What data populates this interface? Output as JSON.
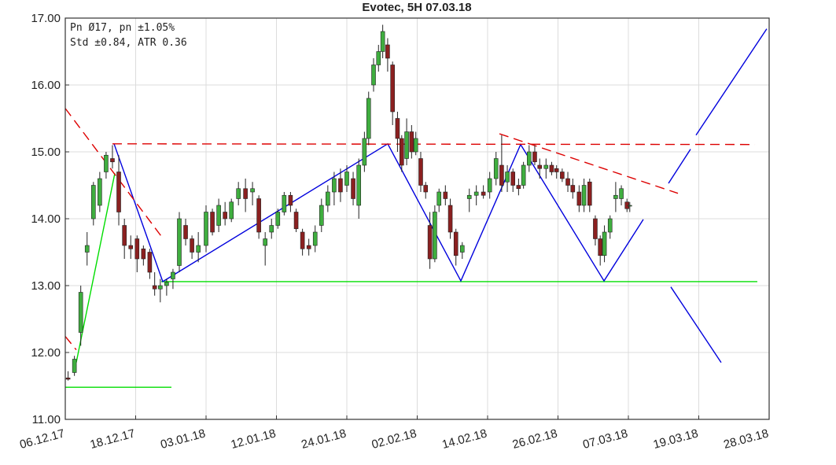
{
  "chart_data": {
    "type": "candlestick",
    "title": "Evotec, 5H 07.03.18",
    "annotations": [
      "Pn  Ø17, pn ±1.05%",
      "Std ±0.84, ATR 0.36"
    ],
    "xlim": [
      0,
      10
    ],
    "ylim": [
      11,
      17
    ],
    "grid": true,
    "xticks": [
      {
        "value": 0,
        "label": "06.12.17"
      },
      {
        "value": 1,
        "label": "18.12.17"
      },
      {
        "value": 2,
        "label": "03.01.18"
      },
      {
        "value": 3,
        "label": "12.01.18"
      },
      {
        "value": 4,
        "label": "24.01.18"
      },
      {
        "value": 5,
        "label": "02.02.18"
      },
      {
        "value": 6,
        "label": "14.02.18"
      },
      {
        "value": 7,
        "label": "26.02.18"
      },
      {
        "value": 8,
        "label": "07.03.18"
      },
      {
        "value": 9,
        "label": "19.03.18"
      },
      {
        "value": 10,
        "label": "28.03.18"
      }
    ],
    "yticks": [
      {
        "value": 11,
        "label": "11.00"
      },
      {
        "value": 12,
        "label": "12.00"
      },
      {
        "value": 13,
        "label": "13.00"
      },
      {
        "value": 14,
        "label": "14.00"
      },
      {
        "value": 15,
        "label": "15.00"
      },
      {
        "value": 16,
        "label": "16.00"
      },
      {
        "value": 17,
        "label": "17.00"
      }
    ],
    "up_color": "#3fae3f",
    "down_color": "#8b2020",
    "candles": [
      [
        0.04,
        11.62,
        11.72,
        11.58,
        11.6
      ],
      [
        0.13,
        11.7,
        11.95,
        11.65,
        11.9
      ],
      [
        0.22,
        12.3,
        13.0,
        12.1,
        12.9
      ],
      [
        0.31,
        13.5,
        13.8,
        13.3,
        13.6
      ],
      [
        0.4,
        14.0,
        14.55,
        13.9,
        14.5
      ],
      [
        0.49,
        14.2,
        14.7,
        14.1,
        14.6
      ],
      [
        0.58,
        14.7,
        15.0,
        14.6,
        14.95
      ],
      [
        0.67,
        14.9,
        15.1,
        14.75,
        14.85
      ],
      [
        0.76,
        14.7,
        14.95,
        13.9,
        14.1
      ],
      [
        0.84,
        13.9,
        14.0,
        13.4,
        13.6
      ],
      [
        0.93,
        13.6,
        13.75,
        13.4,
        13.55
      ],
      [
        1.02,
        13.7,
        13.75,
        13.2,
        13.4
      ],
      [
        1.11,
        13.55,
        13.6,
        13.3,
        13.4
      ],
      [
        1.2,
        13.5,
        13.55,
        13.1,
        13.2
      ],
      [
        1.27,
        13.0,
        13.2,
        12.85,
        12.95
      ],
      [
        1.35,
        12.95,
        13.1,
        12.75,
        13.0
      ],
      [
        1.44,
        13.0,
        13.1,
        12.85,
        13.05
      ],
      [
        1.53,
        13.1,
        13.25,
        12.95,
        13.2
      ],
      [
        1.62,
        13.3,
        14.1,
        13.2,
        14.0
      ],
      [
        1.71,
        13.9,
        14.0,
        13.6,
        13.7
      ],
      [
        1.8,
        13.7,
        13.75,
        13.4,
        13.5
      ],
      [
        1.89,
        13.5,
        13.8,
        13.35,
        13.6
      ],
      [
        2.0,
        13.6,
        14.2,
        13.5,
        14.1
      ],
      [
        2.09,
        14.1,
        14.15,
        13.75,
        13.8
      ],
      [
        2.18,
        13.9,
        14.3,
        13.8,
        14.2
      ],
      [
        2.27,
        14.1,
        14.25,
        13.9,
        14.0
      ],
      [
        2.36,
        14.0,
        14.3,
        13.95,
        14.25
      ],
      [
        2.46,
        14.3,
        14.55,
        14.2,
        14.45
      ],
      [
        2.56,
        14.45,
        14.6,
        14.1,
        14.3
      ],
      [
        2.66,
        14.4,
        14.55,
        14.2,
        14.45
      ],
      [
        2.75,
        14.3,
        14.35,
        13.7,
        13.8
      ],
      [
        2.84,
        13.6,
        13.8,
        13.3,
        13.7
      ],
      [
        2.93,
        13.8,
        14.0,
        13.7,
        13.9
      ],
      [
        3.02,
        13.9,
        14.15,
        13.85,
        14.1
      ],
      [
        3.11,
        14.1,
        14.4,
        14.05,
        14.35
      ],
      [
        3.2,
        14.35,
        14.4,
        14.1,
        14.2
      ],
      [
        3.28,
        14.1,
        14.15,
        13.8,
        13.85
      ],
      [
        3.37,
        13.8,
        13.85,
        13.45,
        13.55
      ],
      [
        3.46,
        13.6,
        13.7,
        13.45,
        13.55
      ],
      [
        3.55,
        13.6,
        13.9,
        13.5,
        13.8
      ],
      [
        3.64,
        13.9,
        14.3,
        13.8,
        14.2
      ],
      [
        3.73,
        14.2,
        14.5,
        14.1,
        14.4
      ],
      [
        3.82,
        14.4,
        14.7,
        14.2,
        14.6
      ],
      [
        3.91,
        14.6,
        14.75,
        14.25,
        14.4
      ],
      [
        4.0,
        14.5,
        14.8,
        14.4,
        14.7
      ],
      [
        4.09,
        14.6,
        14.7,
        14.2,
        14.3
      ],
      [
        4.17,
        14.2,
        14.9,
        14.0,
        14.8
      ],
      [
        4.25,
        14.8,
        15.3,
        14.7,
        15.2
      ],
      [
        4.31,
        15.2,
        15.9,
        15.1,
        15.8
      ],
      [
        4.38,
        16.0,
        16.4,
        15.9,
        16.3
      ],
      [
        4.45,
        16.3,
        16.6,
        16.2,
        16.5
      ],
      [
        4.51,
        16.5,
        16.9,
        16.4,
        16.8
      ],
      [
        4.58,
        16.6,
        16.7,
        16.2,
        16.4
      ],
      [
        4.65,
        16.3,
        16.35,
        15.4,
        15.6
      ],
      [
        4.72,
        15.5,
        15.6,
        15.0,
        15.2
      ],
      [
        4.78,
        15.2,
        15.25,
        14.7,
        14.8
      ],
      [
        4.85,
        14.9,
        15.5,
        14.8,
        15.3
      ],
      [
        4.92,
        15.3,
        15.4,
        14.9,
        15.0
      ],
      [
        4.98,
        15.0,
        15.3,
        14.95,
        15.2
      ],
      [
        5.05,
        14.9,
        15.0,
        14.4,
        14.5
      ],
      [
        5.12,
        14.5,
        14.55,
        14.3,
        14.4
      ],
      [
        5.18,
        13.9,
        14.1,
        13.25,
        13.4
      ],
      [
        5.25,
        13.4,
        14.2,
        13.35,
        14.1
      ],
      [
        5.31,
        14.2,
        14.45,
        14.1,
        14.4
      ],
      [
        5.4,
        14.4,
        14.5,
        14.2,
        14.3
      ],
      [
        5.47,
        14.2,
        14.3,
        13.7,
        13.8
      ],
      [
        5.55,
        13.8,
        13.85,
        13.3,
        13.45
      ],
      [
        5.64,
        13.5,
        13.65,
        13.4,
        13.6
      ],
      [
        5.74,
        14.3,
        14.45,
        14.1,
        14.35
      ],
      [
        5.84,
        14.35,
        14.5,
        14.2,
        14.4
      ],
      [
        5.94,
        14.4,
        14.5,
        14.3,
        14.35
      ],
      [
        6.03,
        14.4,
        14.7,
        14.3,
        14.6
      ],
      [
        6.12,
        14.6,
        15.0,
        14.5,
        14.9
      ],
      [
        6.2,
        14.8,
        15.25,
        14.4,
        14.5
      ],
      [
        6.28,
        14.55,
        14.8,
        14.4,
        14.7
      ],
      [
        6.36,
        14.7,
        14.75,
        14.4,
        14.5
      ],
      [
        6.44,
        14.5,
        14.6,
        14.35,
        14.45
      ],
      [
        6.51,
        14.5,
        14.85,
        14.45,
        14.8
      ],
      [
        6.59,
        14.8,
        15.1,
        14.7,
        15.0
      ],
      [
        6.67,
        15.0,
        15.1,
        14.8,
        14.85
      ],
      [
        6.74,
        14.8,
        14.9,
        14.6,
        14.75
      ],
      [
        6.83,
        14.75,
        14.9,
        14.6,
        14.8
      ],
      [
        6.91,
        14.8,
        14.85,
        14.65,
        14.7
      ],
      [
        6.98,
        14.75,
        14.8,
        14.6,
        14.7
      ],
      [
        7.06,
        14.7,
        14.75,
        14.55,
        14.6
      ],
      [
        7.14,
        14.6,
        14.7,
        14.4,
        14.5
      ],
      [
        7.21,
        14.5,
        14.6,
        14.3,
        14.4
      ],
      [
        7.3,
        14.4,
        14.5,
        14.1,
        14.2
      ],
      [
        7.37,
        14.2,
        14.6,
        14.1,
        14.5
      ],
      [
        7.45,
        14.55,
        14.6,
        14.1,
        14.2
      ],
      [
        7.53,
        14.0,
        14.05,
        13.6,
        13.7
      ],
      [
        7.6,
        13.7,
        13.75,
        13.3,
        13.45
      ],
      [
        7.66,
        13.45,
        13.9,
        13.35,
        13.8
      ],
      [
        7.74,
        13.8,
        14.05,
        13.7,
        14.0
      ],
      [
        7.82,
        14.3,
        14.55,
        14.1,
        14.35
      ],
      [
        7.9,
        14.3,
        14.5,
        14.2,
        14.45
      ],
      [
        7.98,
        14.25,
        14.3,
        14.1,
        14.15
      ],
      [
        8.02,
        14.2,
        14.25,
        14.1,
        14.2
      ]
    ],
    "overlays": [
      {
        "color": "#00dd00",
        "dash": false,
        "x": [
          0.156,
          0.704
        ],
        "y": [
          11.85,
          14.68
        ]
      },
      {
        "color": "#00dd00",
        "dash": false,
        "x": [
          1.363,
          9.832
        ],
        "y": [
          13.06,
          13.06
        ]
      },
      {
        "color": "#00dd00",
        "dash": false,
        "x": [
          0,
          1.508
        ],
        "y": [
          11.48,
          11.48
        ]
      },
      {
        "color": "#0000dd",
        "dash": false,
        "x": [
          0.693,
          1.385,
          4.581,
          5.62,
          6.469,
          7.654,
          8.212
        ],
        "y": [
          15.12,
          13.06,
          15.12,
          13.07,
          15.11,
          13.07,
          13.99
        ]
      },
      {
        "color": "#0000dd",
        "dash": false,
        "x": [
          8.57,
          8.883
        ],
        "y": [
          14.53,
          15.04
        ]
      },
      {
        "color": "#0000dd",
        "dash": false,
        "x": [
          8.961,
          9.966
        ],
        "y": [
          15.25,
          16.84
        ]
      },
      {
        "color": "#0000dd",
        "dash": false,
        "x": [
          8.603,
          9.318
        ],
        "y": [
          12.98,
          11.85
        ]
      },
      {
        "color": "#dd0000",
        "dash": true,
        "x": [
          0,
          1.363
        ],
        "y": [
          15.65,
          13.74
        ]
      },
      {
        "color": "#dd0000",
        "dash": true,
        "x": [
          0,
          0.156
        ],
        "y": [
          12.24,
          12.04
        ]
      },
      {
        "color": "#dd0000",
        "dash": true,
        "x": [
          0.67,
          9.799
        ],
        "y": [
          15.12,
          15.11
        ]
      },
      {
        "color": "#dd0000",
        "dash": true,
        "x": [
          6.168,
          8.704
        ],
        "y": [
          15.27,
          14.38
        ]
      }
    ]
  }
}
